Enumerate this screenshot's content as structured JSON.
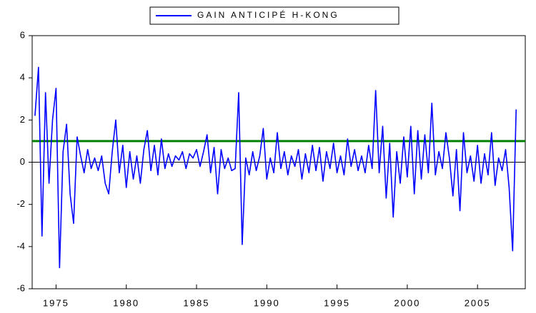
{
  "chart_data": {
    "type": "line",
    "x": [
      1973.5,
      1973.75,
      1974,
      1974.25,
      1974.5,
      1974.75,
      1975,
      1975.25,
      1975.5,
      1975.75,
      1976,
      1976.25,
      1976.5,
      1976.75,
      1977,
      1977.25,
      1977.5,
      1977.75,
      1978,
      1978.25,
      1978.5,
      1978.75,
      1979,
      1979.25,
      1979.5,
      1979.75,
      1980,
      1980.25,
      1980.5,
      1980.75,
      1981,
      1981.25,
      1981.5,
      1981.75,
      1982,
      1982.25,
      1982.5,
      1982.75,
      1983,
      1983.25,
      1983.5,
      1983.75,
      1984,
      1984.25,
      1984.5,
      1984.75,
      1985,
      1985.25,
      1985.5,
      1985.75,
      1986,
      1986.25,
      1986.5,
      1986.75,
      1987,
      1987.25,
      1987.5,
      1987.75,
      1988,
      1988.25,
      1988.5,
      1988.75,
      1989,
      1989.25,
      1989.5,
      1989.75,
      1990,
      1990.25,
      1990.5,
      1990.75,
      1991,
      1991.25,
      1991.5,
      1991.75,
      1992,
      1992.25,
      1992.5,
      1992.75,
      1993,
      1993.25,
      1993.5,
      1993.75,
      1994,
      1994.25,
      1994.5,
      1994.75,
      1995,
      1995.25,
      1995.5,
      1995.75,
      1996,
      1996.25,
      1996.5,
      1996.75,
      1997,
      1997.25,
      1997.5,
      1997.75,
      1998,
      1998.25,
      1998.5,
      1998.75,
      1999,
      1999.25,
      1999.5,
      1999.75,
      2000,
      2000.25,
      2000.5,
      2000.75,
      2001,
      2001.25,
      2001.5,
      2001.75,
      2002,
      2002.25,
      2002.5,
      2002.75,
      2003,
      2003.25,
      2003.5,
      2003.75,
      2004,
      2004.25,
      2004.5,
      2004.75,
      2005,
      2005.25,
      2005.5,
      2005.75,
      2006,
      2006.25,
      2006.5,
      2006.75,
      2007,
      2007.25,
      2007.5,
      2007.75
    ],
    "series": [
      {
        "name": "GAIN ANTICIPÉ H-KONG",
        "color": "#0000ff",
        "values": [
          2.2,
          4.5,
          -3.5,
          3.3,
          -1.0,
          2.0,
          3.5,
          -5.0,
          0.5,
          1.8,
          -1.5,
          -2.9,
          1.2,
          0.3,
          -0.5,
          0.6,
          -0.3,
          0.2,
          -0.4,
          0.3,
          -1.0,
          -1.5,
          0.5,
          2.0,
          -0.5,
          0.8,
          -1.2,
          0.5,
          -0.8,
          0.3,
          -1.0,
          0.6,
          1.5,
          -0.4,
          0.8,
          -0.6,
          1.1,
          -0.3,
          0.4,
          -0.2,
          0.3,
          0.1,
          0.5,
          -0.3,
          0.4,
          0.2,
          0.6,
          -0.2,
          0.5,
          1.3,
          -0.5,
          0.7,
          -1.5,
          0.6,
          -0.3,
          0.2,
          -0.4,
          -0.3,
          3.3,
          -3.9,
          0.2,
          -0.6,
          0.5,
          -0.4,
          0.3,
          1.6,
          -0.8,
          0.2,
          -0.5,
          1.4,
          -0.3,
          0.5,
          -0.6,
          0.3,
          -0.2,
          0.6,
          -0.8,
          0.4,
          -0.5,
          0.8,
          -0.4,
          0.7,
          -0.9,
          0.5,
          -0.3,
          0.9,
          -0.5,
          0.3,
          -0.6,
          1.1,
          -0.2,
          0.6,
          -0.4,
          0.3,
          -0.5,
          0.8,
          -0.3,
          3.4,
          -0.5,
          1.7,
          -1.7,
          0.9,
          -2.6,
          0.5,
          -1.0,
          1.2,
          -0.7,
          1.7,
          -1.5,
          1.5,
          -0.8,
          1.3,
          -0.5,
          2.8,
          -0.6,
          0.5,
          -0.3,
          1.4,
          0.2,
          -1.6,
          0.6,
          -2.3,
          1.4,
          -0.5,
          0.3,
          -0.9,
          0.8,
          -1.0,
          0.4,
          -0.6,
          1.4,
          -1.1,
          0.2,
          -0.4,
          0.6,
          -1.2,
          -4.2,
          2.5
        ]
      }
    ],
    "hline": {
      "value": 1,
      "color": "#008000"
    },
    "xlim": [
      1973.3,
      2008.4
    ],
    "xticks": [
      1975,
      1980,
      1985,
      1990,
      1995,
      2000,
      2005
    ],
    "ylim": [
      -6,
      6
    ],
    "yticks": [
      -6,
      -4,
      -2,
      0,
      2,
      4,
      6
    ],
    "legend": "top"
  }
}
